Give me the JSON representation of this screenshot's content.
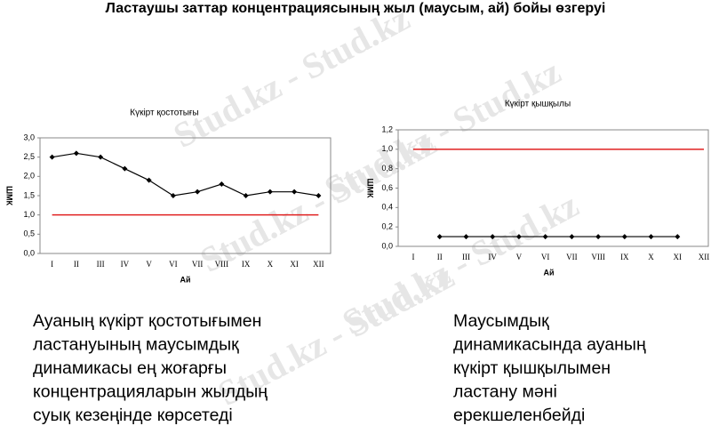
{
  "title": "Ластаушы заттар концентрациясының жыл (маусым, ай) бойы өзгеруі",
  "watermark": "Stud.kz - Stud.kz",
  "chart_data": [
    {
      "type": "line",
      "title": "Күкірт қостотығы",
      "x_label": "Ай",
      "y_label": "ШМК",
      "categories": [
        "I",
        "II",
        "III",
        "IV",
        "V",
        "VI",
        "VII",
        "VIII",
        "IX",
        "X",
        "XI",
        "XII"
      ],
      "series": [
        {
          "color": "#000000",
          "values": [
            2.5,
            2.6,
            2.5,
            2.2,
            1.9,
            1.5,
            1.6,
            1.8,
            1.5,
            1.6,
            1.6,
            1.5
          ]
        },
        {
          "color": "#e02020",
          "values": [
            1.0,
            1.0,
            1.0,
            1.0,
            1.0,
            1.0,
            1.0,
            1.0,
            1.0,
            1.0,
            1.0,
            1.0
          ]
        }
      ],
      "ylim": [
        0,
        3
      ],
      "yticks": [
        {
          "value": 0,
          "label": "0,0"
        },
        {
          "value": 0.5,
          "label": "0,5"
        },
        {
          "value": 1,
          "label": "1,0"
        },
        {
          "value": 1.5,
          "label": "1,5"
        },
        {
          "value": 2,
          "label": "2,0"
        },
        {
          "value": 2.5,
          "label": "2,5"
        },
        {
          "value": 3,
          "label": "3,0"
        }
      ]
    },
    {
      "type": "line",
      "title": "Күкірт қышқылы",
      "x_label": "Ай",
      "y_label": "ШМК",
      "categories": [
        "I",
        "II",
        "III",
        "IV",
        "V",
        "VI",
        "VII",
        "VIII",
        "IX",
        "X",
        "XI",
        "XII"
      ],
      "series": [
        {
          "color": "#000000",
          "values": [
            null,
            0.1,
            0.1,
            0.1,
            0.1,
            0.1,
            0.1,
            0.1,
            0.1,
            0.1,
            0.1,
            null
          ]
        },
        {
          "color": "#e02020",
          "values": [
            1.0,
            1.0,
            1.0,
            1.0,
            1.0,
            1.0,
            1.0,
            1.0,
            1.0,
            1.0,
            1.0,
            1.0
          ]
        }
      ],
      "ylim": [
        0,
        1.2
      ],
      "yticks": [
        {
          "value": 0,
          "label": "0,0"
        },
        {
          "value": 0.2,
          "label": "0,2"
        },
        {
          "value": 0.4,
          "label": "0,4"
        },
        {
          "value": 0.6,
          "label": "0,6"
        },
        {
          "value": 0.8,
          "label": "0,8"
        },
        {
          "value": 1,
          "label": "1,0"
        },
        {
          "value": 1.2,
          "label": "1,2"
        }
      ]
    }
  ],
  "captions": [
    [
      "Ауаның күкірт қостотығымен",
      "ластануының маусымдық",
      "динамикасы ең жоғарғы",
      "концентрацияларын жылдың",
      "суық кезеңінде көрсетеді"
    ],
    [
      "Маусымдық",
      "динамикасында ауаның",
      "күкірт қышқылымен",
      "ластану мәні",
      "ерекшеленбейді"
    ]
  ]
}
